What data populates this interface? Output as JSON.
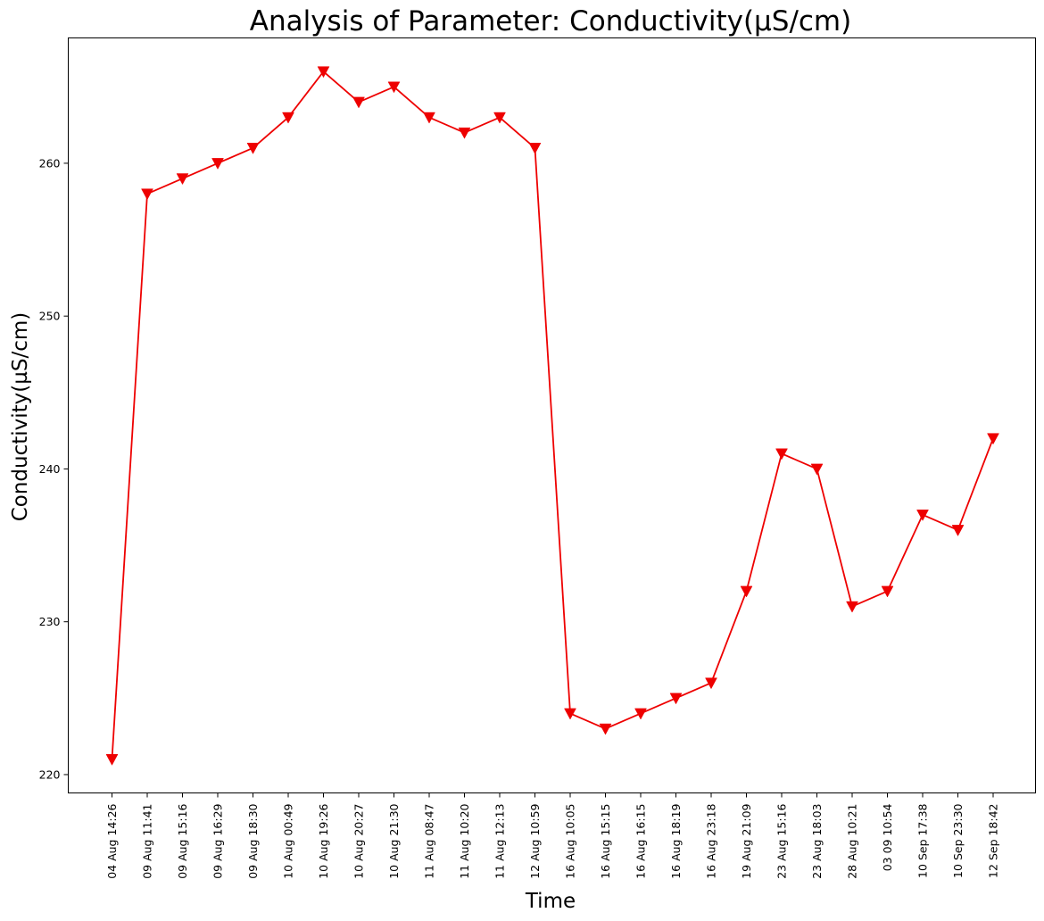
{
  "chart_data": {
    "type": "line",
    "title": "Analysis of Parameter: Conductivity(µS/cm)",
    "xlabel": "Time",
    "ylabel": "Conductivity(µS/cm)",
    "categories": [
      "04 Aug 14:26",
      "09 Aug 11:41",
      "09 Aug 15:16",
      "09 Aug 16:29",
      "09 Aug 18:30",
      "10 Aug 00:49",
      "10 Aug 19:26",
      "10 Aug 20:27",
      "10 Aug 21:30",
      "11 Aug 08:47",
      "11 Aug 10:20",
      "11 Aug 12:13",
      "12 Aug 10:59",
      "16 Aug 10:05",
      "16 Aug 15:15",
      "16 Aug 16:15",
      "16 Aug 18:19",
      "16 Aug 23:18",
      "19 Aug 21:09",
      "23 Aug 15:16",
      "23 Aug 18:03",
      "28 Aug 10:21",
      "03 09 10:54",
      "10 Sep 17:38",
      "10 Sep 23:30",
      "12 Sep 18:42"
    ],
    "series": [
      {
        "values": [
          221,
          258,
          259,
          260,
          261,
          263,
          266,
          264,
          265,
          263,
          262,
          263,
          261,
          224,
          223,
          224,
          225,
          226,
          232,
          241,
          240,
          231,
          232,
          237,
          236,
          242
        ],
        "color": "#ee0000",
        "marker": "triangle-down"
      }
    ],
    "yticks": [
      220,
      230,
      240,
      250,
      260
    ],
    "ylim": [
      218.8,
      268.2
    ],
    "grid": false,
    "legend": "none"
  }
}
